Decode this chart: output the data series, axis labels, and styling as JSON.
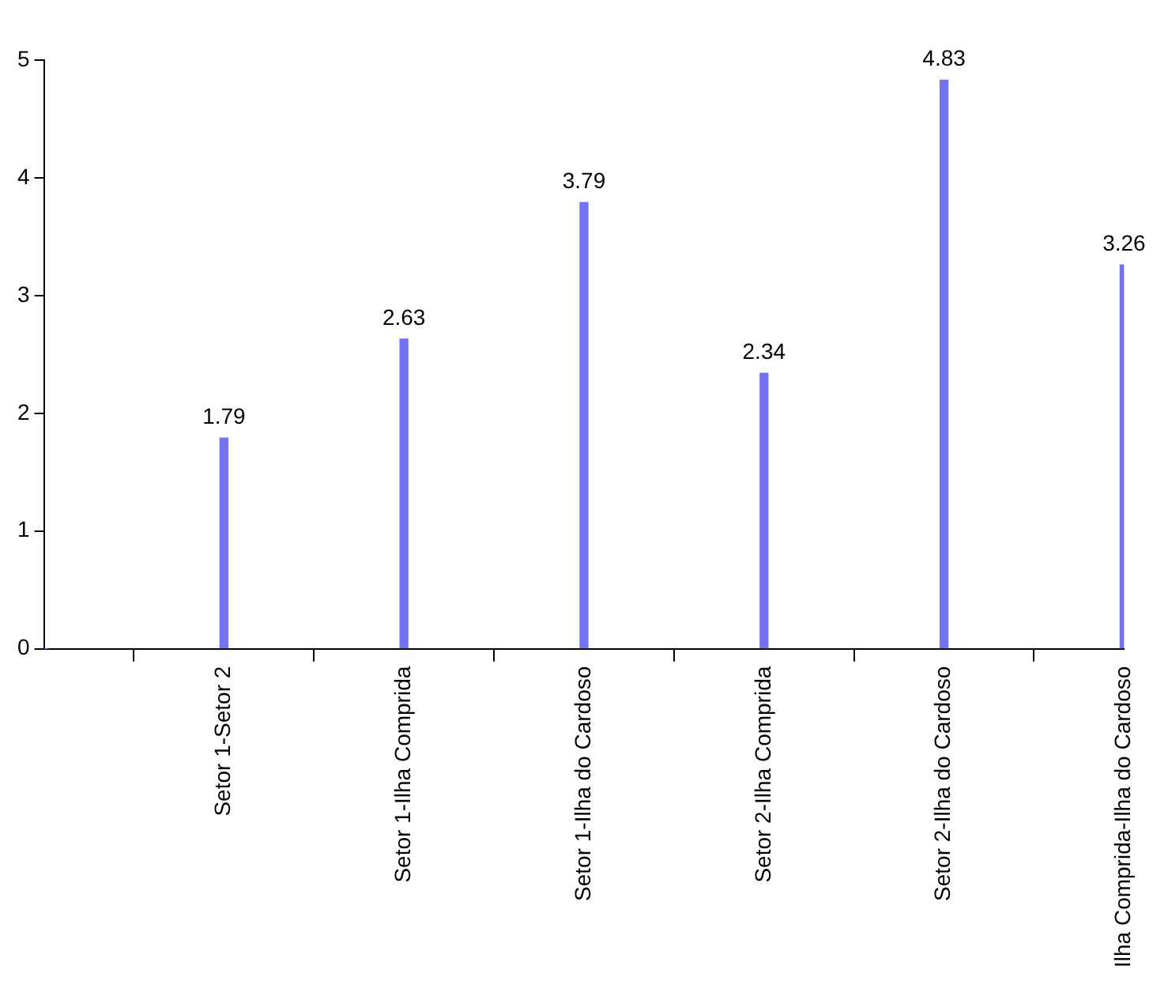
{
  "chart_data": {
    "type": "bar",
    "categories": [
      null,
      "Setor 1-Setor 2",
      "Setor 1-Ilha Comprida",
      "Setor 1-Ilha do Cardoso",
      "Setor 2-Ilha Comprida",
      "Setor 2-Ilha do Cardoso",
      "Ilha Comprida-Ilha do Cardoso"
    ],
    "values": [
      0,
      1.79,
      2.63,
      3.79,
      2.34,
      4.83,
      3.26
    ],
    "value_labels": [
      null,
      "1.79",
      "2.63",
      "3.79",
      "2.34",
      "4.83",
      "3.26"
    ],
    "color": "#7373f2",
    "ylim": [
      0,
      5
    ],
    "yticks": [
      0,
      1,
      2,
      3,
      4,
      5
    ],
    "grid": false,
    "legend": false
  }
}
